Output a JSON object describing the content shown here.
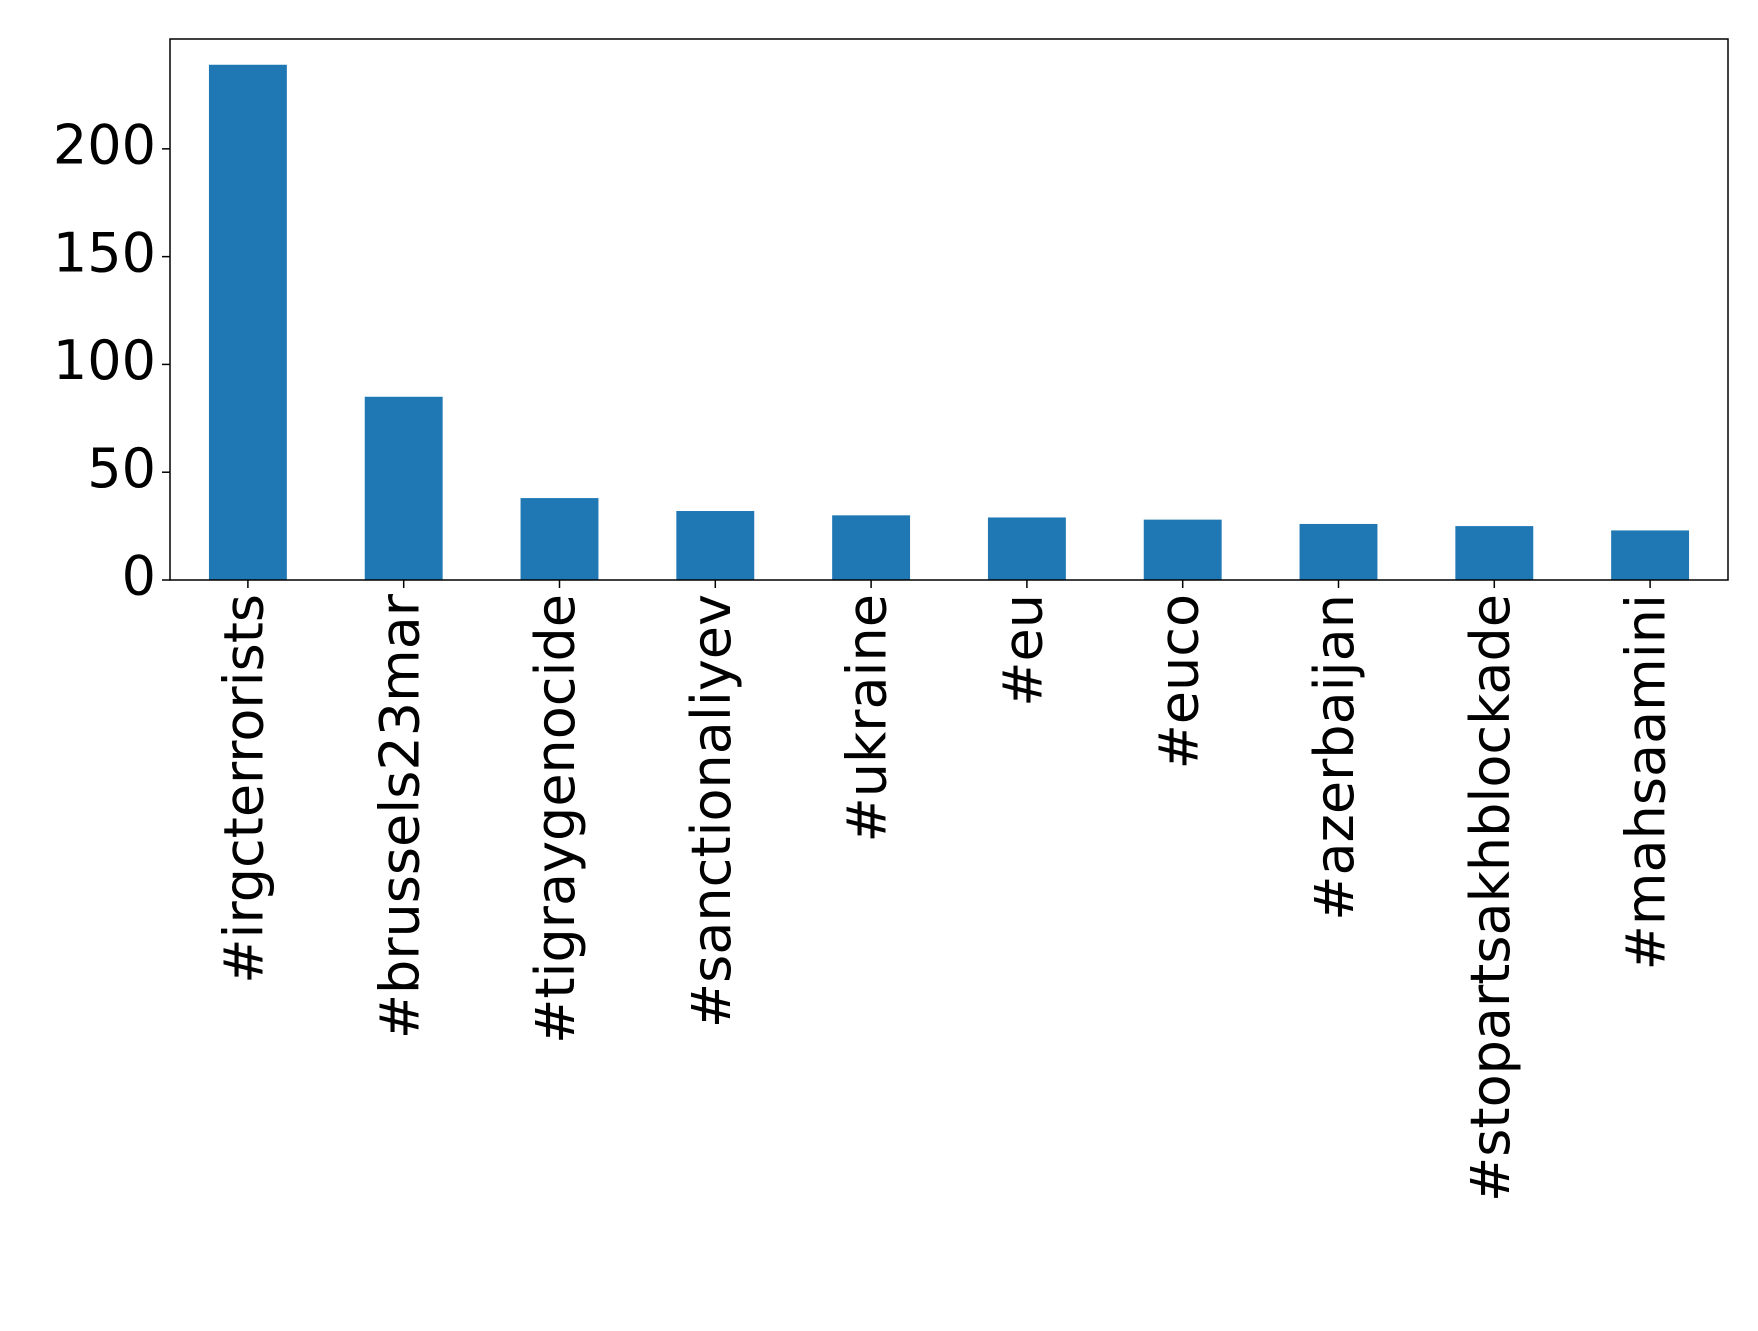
{
  "chart_data": {
    "type": "bar",
    "categories": [
      "#irgcterrorists",
      "#brussels23mar",
      "#tigraygenocide",
      "#sanctionaliyev",
      "#ukraine",
      "#eu",
      "#euco",
      "#azerbaijan",
      "#stopartsakhblockade",
      "#mahsaamini"
    ],
    "values": [
      239,
      85,
      38,
      32,
      30,
      29,
      28,
      26,
      25,
      23
    ],
    "color": "#1f77b4",
    "ylim": [
      0,
      250.95
    ],
    "yticks": [
      0,
      50,
      100,
      150,
      200
    ],
    "grid": false
  }
}
